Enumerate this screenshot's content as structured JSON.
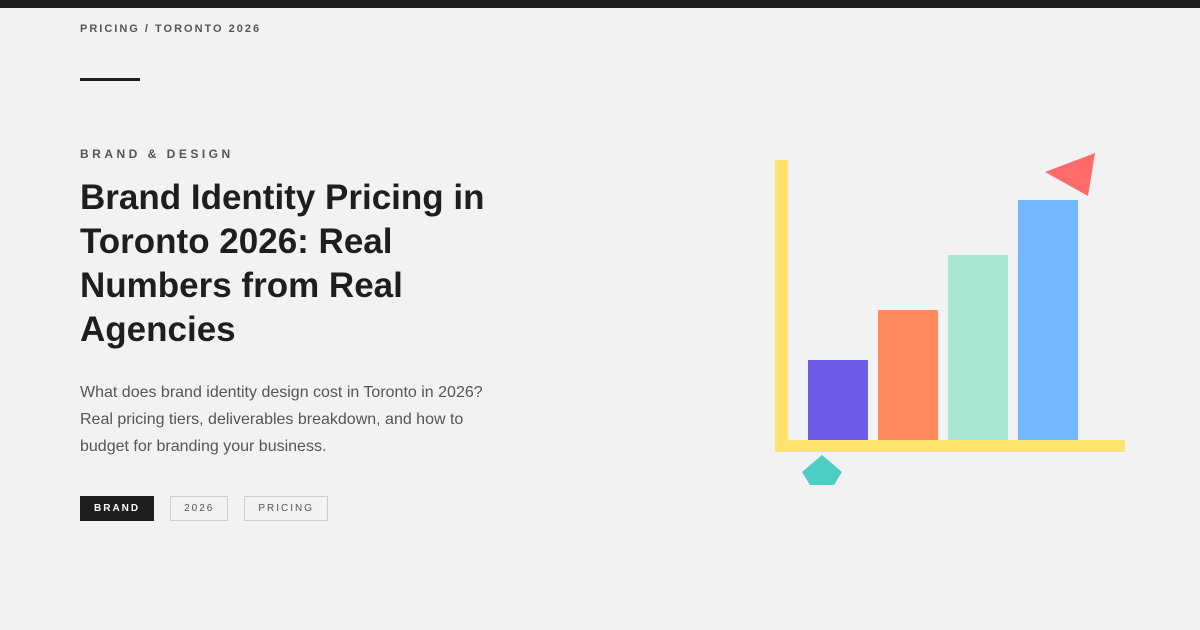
{
  "breadcrumb": "PRICING / TORONTO 2026",
  "category": "BRAND & DESIGN",
  "title": "Brand Identity Pricing in Toronto 2026: Real Numbers from Real Agencies",
  "description": "What does brand identity design cost in Toronto in 2026? Real pricing tiers, deliverables breakdown, and how to budget for branding your business.",
  "tags": [
    "BRAND",
    "2026",
    "PRICING"
  ]
}
